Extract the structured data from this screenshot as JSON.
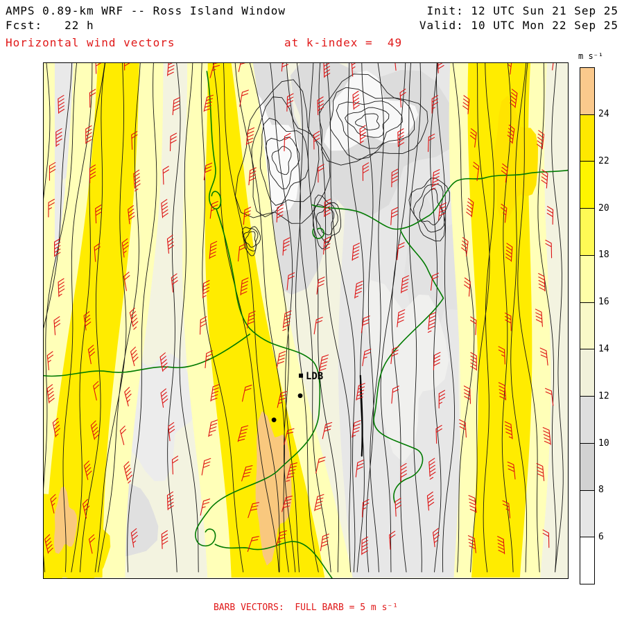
{
  "header": {
    "title": "AMPS 0.89-km WRF -- Ross Island Window",
    "fcst": "Fcst:   22 h",
    "init": "Init: 12 UTC Sun 21 Sep 25",
    "valid": "Valid: 10 UTC Mon 22 Sep 25",
    "field_label": "Horizontal wind vectors",
    "level_label": "at k-index =  49"
  },
  "map": {
    "station_label": "LDB"
  },
  "footer": {
    "caption": "BARB VECTORS:  FULL BARB = 5 m s⁻¹"
  },
  "chart_data": {
    "type": "heatmap",
    "title": "AMPS 0.89-km WRF -- Ross Island Window",
    "subtitle": "Horizontal wind vectors at k-index = 49",
    "fcst_hour": "22 h",
    "init_time": "12 UTC Sun 21 Sep 25",
    "valid_time": "10 UTC Mon 22 Sep 25",
    "units": "m s⁻¹",
    "colorbar": {
      "label": "m s⁻¹",
      "levels": [
        6,
        8,
        10,
        12,
        14,
        16,
        18,
        20,
        22,
        24
      ],
      "colors_top_to_bottom": [
        "#fbc98c",
        "#ffe800",
        "#fff500",
        "#fffa55",
        "#ffffa8",
        "#f9f9c8",
        "#f1f1da",
        "#dedede",
        "#d2d2d2",
        "#e6e6e6",
        "#ffffff"
      ],
      "orientation": "vertical-right"
    },
    "overlays": {
      "isotach_fill": "wind speed shaded bands (gray/cream/yellow/orange)",
      "contour_color": "#141414",
      "coastline_color": "#007a00",
      "barb_color": "#dd1111",
      "full_barb_value": "5 m s⁻¹"
    },
    "stations": [
      {
        "label": "LDB"
      }
    ]
  },
  "colors": {
    "red_text": "#e01818",
    "frame": "#000000",
    "background": "#ffffff"
  }
}
